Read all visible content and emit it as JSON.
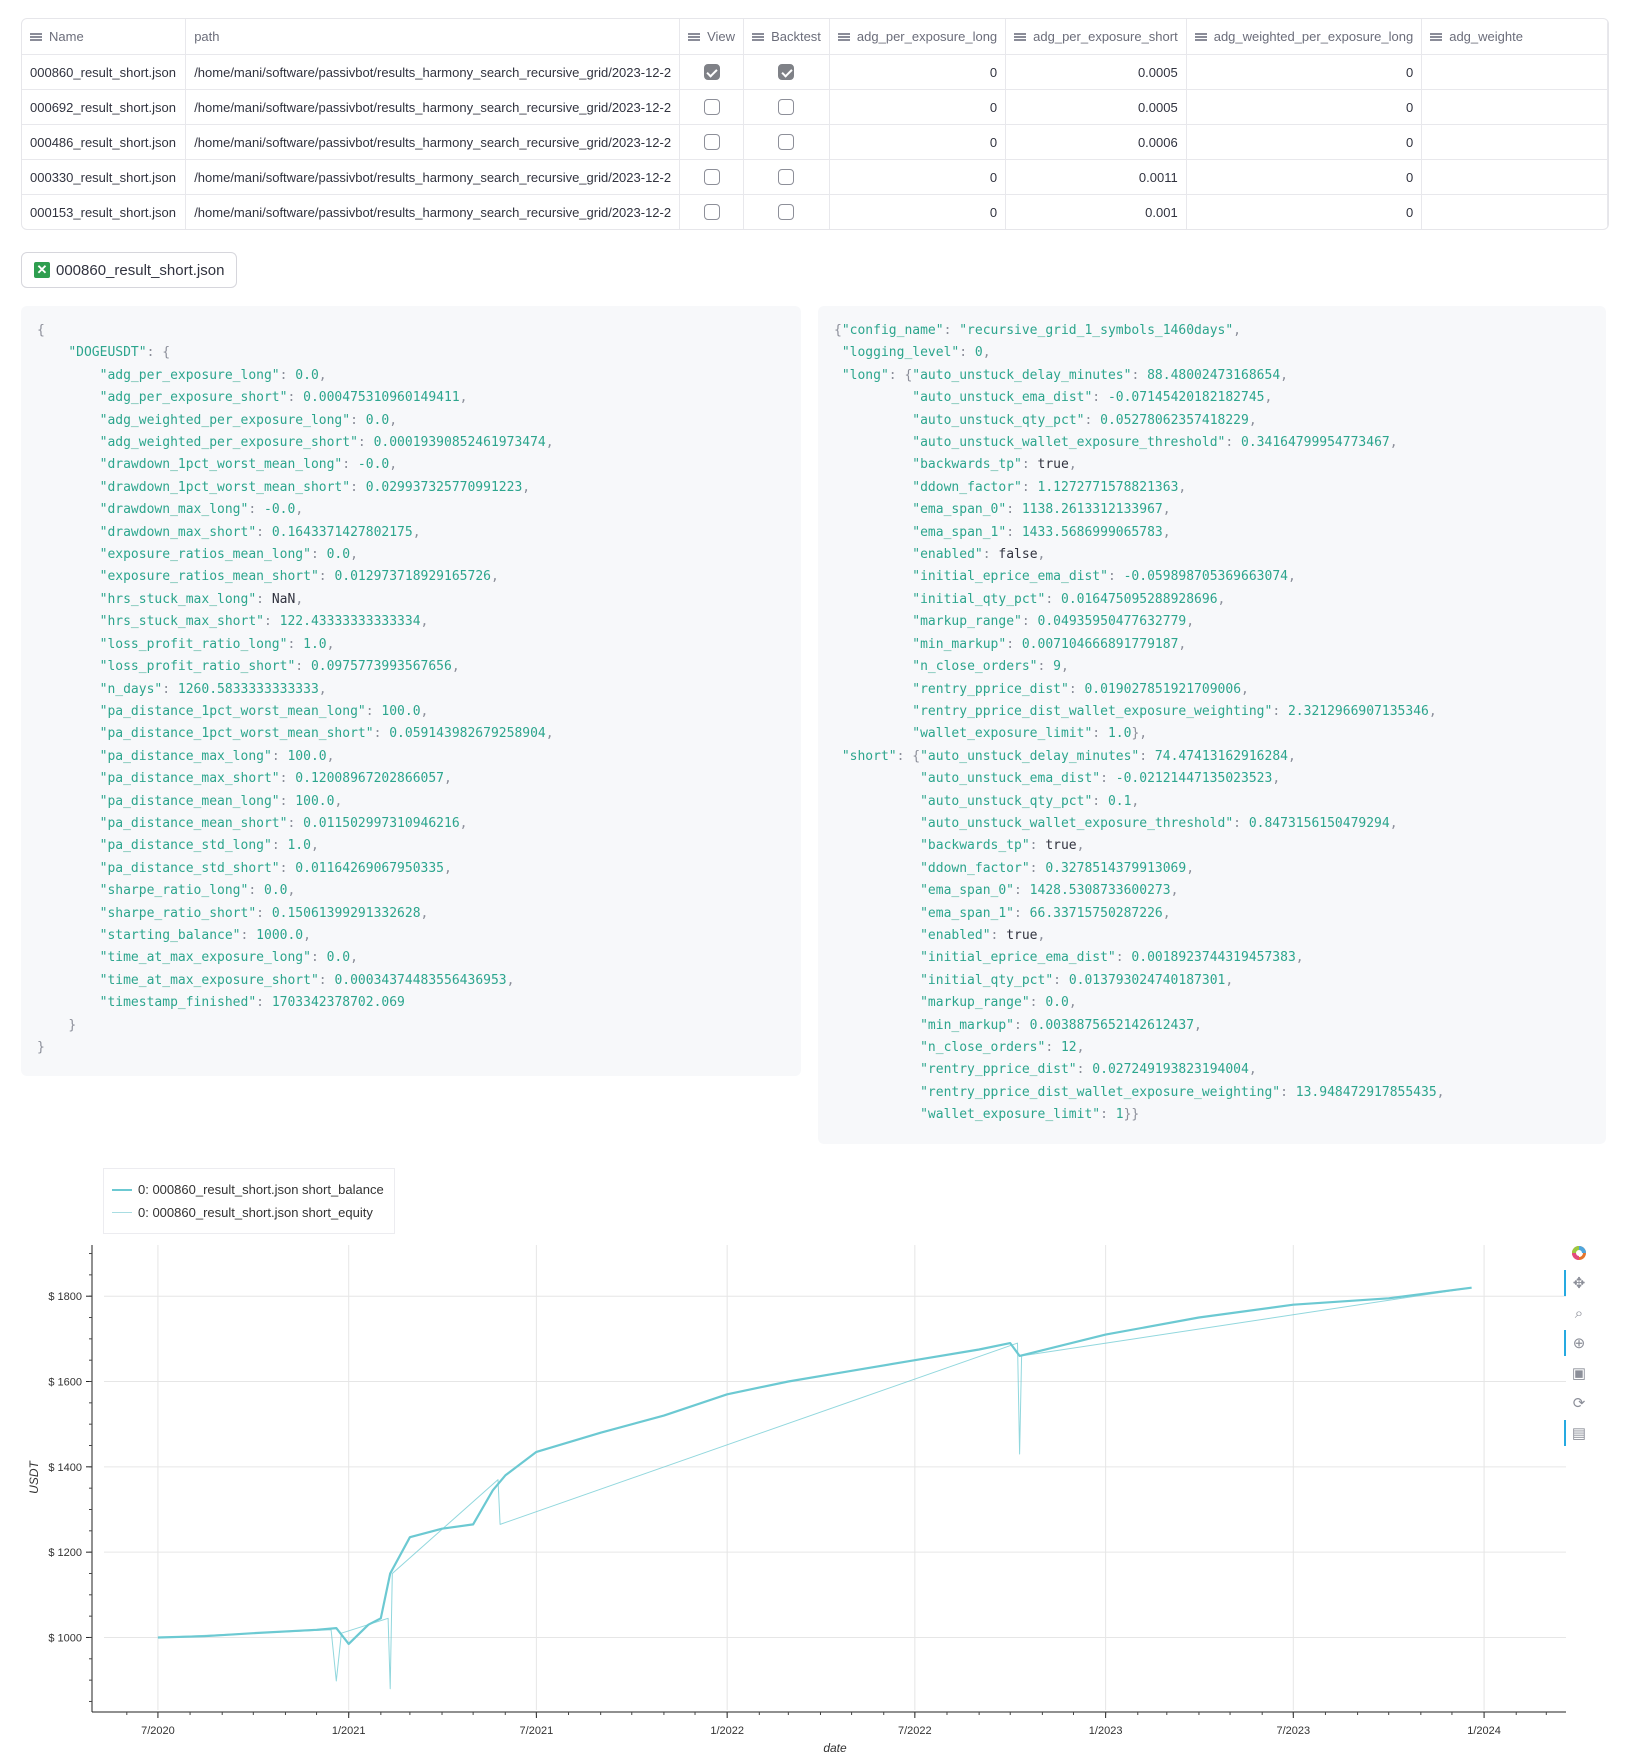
{
  "table": {
    "columns": [
      "Name",
      "path",
      "View",
      "Backtest",
      "adg_per_exposure_long",
      "adg_per_exposure_short",
      "adg_weighted_per_exposure_long",
      "adg_weighte"
    ],
    "rows": [
      {
        "name": "000860_result_short.json",
        "path": "/home/mani/software/passivbot/results_harmony_search_recursive_grid/2023-12-2",
        "view": true,
        "backtest": true,
        "adg_long": "0",
        "adg_short": "0.0005",
        "adg_w_long": "0"
      },
      {
        "name": "000692_result_short.json",
        "path": "/home/mani/software/passivbot/results_harmony_search_recursive_grid/2023-12-2",
        "view": false,
        "backtest": false,
        "adg_long": "0",
        "adg_short": "0.0005",
        "adg_w_long": "0"
      },
      {
        "name": "000486_result_short.json",
        "path": "/home/mani/software/passivbot/results_harmony_search_recursive_grid/2023-12-2",
        "view": false,
        "backtest": false,
        "adg_long": "0",
        "adg_short": "0.0006",
        "adg_w_long": "0"
      },
      {
        "name": "000330_result_short.json",
        "path": "/home/mani/software/passivbot/results_harmony_search_recursive_grid/2023-12-2",
        "view": false,
        "backtest": false,
        "adg_long": "0",
        "adg_short": "0.0011",
        "adg_w_long": "0"
      },
      {
        "name": "000153_result_short.json",
        "path": "/home/mani/software/passivbot/results_harmony_search_recursive_grid/2023-12-2",
        "view": false,
        "backtest": false,
        "adg_long": "0",
        "adg_short": "0.001",
        "adg_w_long": "0"
      }
    ]
  },
  "selected_tag": {
    "label": "000860_result_short.json",
    "icon": "close-x-icon"
  },
  "result_symbol": "DOGEUSDT",
  "result_json": [
    [
      "adg_per_exposure_long",
      "0.0"
    ],
    [
      "adg_per_exposure_short",
      "0.000475310960149411"
    ],
    [
      "adg_weighted_per_exposure_long",
      "0.0"
    ],
    [
      "adg_weighted_per_exposure_short",
      "0.00019390852461973474"
    ],
    [
      "drawdown_1pct_worst_mean_long",
      "-0.0"
    ],
    [
      "drawdown_1pct_worst_mean_short",
      "0.029937325770991223"
    ],
    [
      "drawdown_max_long",
      "-0.0"
    ],
    [
      "drawdown_max_short",
      "0.1643371427802175"
    ],
    [
      "exposure_ratios_mean_long",
      "0.0"
    ],
    [
      "exposure_ratios_mean_short",
      "0.012973718929165726"
    ],
    [
      "hrs_stuck_max_long",
      "NaN"
    ],
    [
      "hrs_stuck_max_short",
      "122.43333333333334"
    ],
    [
      "loss_profit_ratio_long",
      "1.0"
    ],
    [
      "loss_profit_ratio_short",
      "0.0975773993567656"
    ],
    [
      "n_days",
      "1260.5833333333333"
    ],
    [
      "pa_distance_1pct_worst_mean_long",
      "100.0"
    ],
    [
      "pa_distance_1pct_worst_mean_short",
      "0.059143982679258904"
    ],
    [
      "pa_distance_max_long",
      "100.0"
    ],
    [
      "pa_distance_max_short",
      "0.12008967202866057"
    ],
    [
      "pa_distance_mean_long",
      "100.0"
    ],
    [
      "pa_distance_mean_short",
      "0.011502997310946216"
    ],
    [
      "pa_distance_std_long",
      "1.0"
    ],
    [
      "pa_distance_std_short",
      "0.01164269067950335"
    ],
    [
      "sharpe_ratio_long",
      "0.0"
    ],
    [
      "sharpe_ratio_short",
      "0.15061399291332628"
    ],
    [
      "starting_balance",
      "1000.0"
    ],
    [
      "time_at_max_exposure_long",
      "0.0"
    ],
    [
      "time_at_max_exposure_short",
      "0.00034374483556436953"
    ],
    [
      "timestamp_finished",
      "1703342378702.069"
    ]
  ],
  "config": {
    "config_name": "recursive_grid_1_symbols_1460days",
    "logging_level": "0",
    "long": [
      [
        "auto_unstuck_delay_minutes",
        "88.48002473168654"
      ],
      [
        "auto_unstuck_ema_dist",
        "-0.07145420182182745"
      ],
      [
        "auto_unstuck_qty_pct",
        "0.05278062357418229"
      ],
      [
        "auto_unstuck_wallet_exposure_threshold",
        "0.34164799954773467"
      ],
      [
        "backwards_tp",
        "true"
      ],
      [
        "ddown_factor",
        "1.1272771578821363"
      ],
      [
        "ema_span_0",
        "1138.2613312133967"
      ],
      [
        "ema_span_1",
        "1433.5686999065783"
      ],
      [
        "enabled",
        "false"
      ],
      [
        "initial_eprice_ema_dist",
        "-0.059898705369663074"
      ],
      [
        "initial_qty_pct",
        "0.016475095288928696"
      ],
      [
        "markup_range",
        "0.04935950477632779"
      ],
      [
        "min_markup",
        "0.007104666891779187"
      ],
      [
        "n_close_orders",
        "9"
      ],
      [
        "rentry_pprice_dist",
        "0.019027851921709006"
      ],
      [
        "rentry_pprice_dist_wallet_exposure_weighting",
        "2.3212966907135346"
      ],
      [
        "wallet_exposure_limit",
        "1.0"
      ]
    ],
    "short": [
      [
        "auto_unstuck_delay_minutes",
        "74.47413162916284"
      ],
      [
        "auto_unstuck_ema_dist",
        "-0.02121447135023523"
      ],
      [
        "auto_unstuck_qty_pct",
        "0.1"
      ],
      [
        "auto_unstuck_wallet_exposure_threshold",
        "0.8473156150479294"
      ],
      [
        "backwards_tp",
        "true"
      ],
      [
        "ddown_factor",
        "0.3278514379913069"
      ],
      [
        "ema_span_0",
        "1428.5308733600273"
      ],
      [
        "ema_span_1",
        "66.33715750287226"
      ],
      [
        "enabled",
        "true"
      ],
      [
        "initial_eprice_ema_dist",
        "0.0018923744319457383"
      ],
      [
        "initial_qty_pct",
        "0.013793024740187301"
      ],
      [
        "markup_range",
        "0.0"
      ],
      [
        "min_markup",
        "0.0038875652142612437"
      ],
      [
        "n_close_orders",
        "12"
      ],
      [
        "rentry_pprice_dist",
        "0.027249193823194004"
      ],
      [
        "rentry_pprice_dist_wallet_exposure_weighting",
        "13.948472917855435"
      ],
      [
        "wallet_exposure_limit",
        "1"
      ]
    ]
  },
  "chart_data": {
    "type": "line",
    "xlabel": "date",
    "ylabel": "USDT",
    "x_ticks": [
      "7/2020",
      "1/2021",
      "7/2021",
      "1/2022",
      "7/2022",
      "1/2023",
      "7/2023",
      "1/2024"
    ],
    "y_ticks": [
      "$ 1000",
      "$ 1200",
      "$ 1400",
      "$ 1600",
      "$ 1800"
    ],
    "xlim": [
      "2020-05-10",
      "2024-03-20"
    ],
    "ylim": [
      830,
      1920
    ],
    "legend_placement": "top-left",
    "grid": true,
    "series_color": "#6cc9d2",
    "series": [
      {
        "name": "0: 000860_result_short.json short_balance",
        "x": [
          "2020-07-01",
          "2020-08-15",
          "2020-10-01",
          "2020-12-01",
          "2020-12-20",
          "2021-01-01",
          "2021-01-20",
          "2021-02-01",
          "2021-02-10",
          "2021-03-01",
          "2021-04-01",
          "2021-05-01",
          "2021-05-20",
          "2021-06-01",
          "2021-07-01",
          "2021-09-01",
          "2021-11-01",
          "2022-01-01",
          "2022-03-01",
          "2022-05-01",
          "2022-07-01",
          "2022-09-01",
          "2022-10-01",
          "2022-10-10",
          "2023-01-01",
          "2023-04-01",
          "2023-07-01",
          "2023-10-01",
          "2023-12-20"
        ],
        "y": [
          1000,
          1003,
          1010,
          1018,
          1022,
          985,
          1030,
          1045,
          1150,
          1235,
          1255,
          1265,
          1345,
          1380,
          1435,
          1480,
          1520,
          1570,
          1600,
          1625,
          1650,
          1675,
          1690,
          1660,
          1710,
          1750,
          1780,
          1795,
          1820
        ]
      },
      {
        "name": "0: 000860_result_short.json short_equity",
        "x": [
          "2020-07-01",
          "2020-12-15",
          "2020-12-20",
          "2020-12-25",
          "2021-02-08",
          "2021-02-10",
          "2021-02-12",
          "2021-05-25",
          "2021-05-27",
          "2022-10-08",
          "2022-10-10",
          "2022-10-12",
          "2023-12-20"
        ],
        "y": [
          1000,
          1018,
          898,
          1010,
          1045,
          880,
          1150,
          1370,
          1265,
          1690,
          1430,
          1660,
          1820
        ]
      }
    ]
  }
}
